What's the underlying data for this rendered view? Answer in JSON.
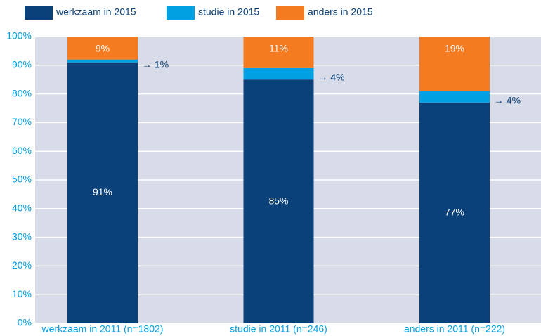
{
  "chart_data": {
    "type": "stacked_bar",
    "categories": [
      "werkzaam in 2011 (n=1802)",
      "studie in 2011 (n=246)",
      "anders in 2011 (n=222)"
    ],
    "series": [
      {
        "name": "werkzaam in 2015",
        "color": "#0b4179",
        "values": [
          91,
          85,
          77
        ],
        "value_labels": [
          "91%",
          "85%",
          "77%"
        ]
      },
      {
        "name": "studie in 2015",
        "color": "#00a0e3",
        "values": [
          1,
          4,
          4
        ],
        "value_labels": [
          "→ 1%",
          "→ 4%",
          "→ 4%"
        ]
      },
      {
        "name": "anders in 2015",
        "color": "#f47b20",
        "values": [
          9,
          11,
          19
        ],
        "value_labels": [
          "9%",
          "11%",
          "19%"
        ]
      }
    ],
    "ylim": [
      0,
      100
    ],
    "yticks": [
      {
        "value": 0,
        "label": "0%"
      },
      {
        "value": 10,
        "label": "10%"
      },
      {
        "value": 20,
        "label": "20%"
      },
      {
        "value": 30,
        "label": "30%"
      },
      {
        "value": 40,
        "label": "40%"
      },
      {
        "value": 50,
        "label": "50%"
      },
      {
        "value": 60,
        "label": "60%"
      },
      {
        "value": 70,
        "label": "70%"
      },
      {
        "value": 80,
        "label": "80%"
      },
      {
        "value": 90,
        "label": "90%"
      },
      {
        "value": 100,
        "label": "100%"
      }
    ],
    "grid": true
  }
}
